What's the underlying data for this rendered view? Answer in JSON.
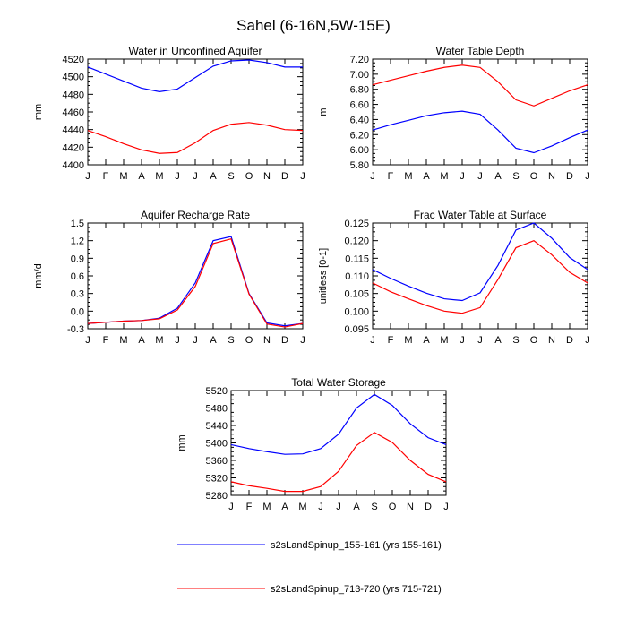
{
  "figure_title": "Sahel (6-16N,5W-15E)",
  "legend": [
    {
      "label": "s2sLandSpinup_155-161 (yrs 155-161)",
      "color": "#0000ff"
    },
    {
      "label": "s2sLandSpinup_713-720 (yrs 715-721)",
      "color": "#ff0000"
    }
  ],
  "chart_data": [
    {
      "type": "line",
      "title": "Water in Unconfined Aquifer",
      "ylabel": "mm",
      "categories": [
        "J",
        "F",
        "M",
        "A",
        "M",
        "J",
        "J",
        "A",
        "S",
        "O",
        "N",
        "D",
        "J"
      ],
      "ylim": [
        4400,
        4520
      ],
      "yticks": [
        4400,
        4420,
        4440,
        4460,
        4480,
        4500,
        4520
      ],
      "ytick_labels": [
        "4400",
        "4420",
        "4440",
        "4460",
        "4480",
        "4500",
        "4520"
      ],
      "series": [
        {
          "name": "s2sLandSpinup_155-161 (yrs 155-161)",
          "color": "#0000ff",
          "values": [
            4511,
            4503,
            4495,
            4487,
            4483,
            4486,
            4499,
            4512,
            4518,
            4519,
            4516,
            4511,
            4511
          ]
        },
        {
          "name": "s2sLandSpinup_713-720 (yrs 715-721)",
          "color": "#ff0000",
          "values": [
            4439,
            4432,
            4424,
            4417,
            4413,
            4414,
            4425,
            4439,
            4446,
            4448,
            4445,
            4440,
            4439
          ]
        }
      ]
    },
    {
      "type": "line",
      "title": "Water Table Depth",
      "ylabel": "m",
      "categories": [
        "J",
        "F",
        "M",
        "A",
        "M",
        "J",
        "J",
        "A",
        "S",
        "O",
        "N",
        "D",
        "J"
      ],
      "ylim": [
        5.8,
        7.2
      ],
      "yticks": [
        5.8,
        6.0,
        6.2,
        6.4,
        6.6,
        6.8,
        7.0,
        7.2
      ],
      "ytick_labels": [
        "5.80",
        "6.00",
        "6.20",
        "6.40",
        "6.60",
        "6.80",
        "7.00",
        "7.20"
      ],
      "series": [
        {
          "name": "s2sLandSpinup_155-161 (yrs 155-161)",
          "color": "#0000ff",
          "values": [
            6.26,
            6.33,
            6.39,
            6.45,
            6.49,
            6.51,
            6.47,
            6.26,
            6.02,
            5.96,
            6.05,
            6.16,
            6.26
          ]
        },
        {
          "name": "s2sLandSpinup_713-720 (yrs 715-721)",
          "color": "#ff0000",
          "values": [
            6.86,
            6.92,
            6.98,
            7.04,
            7.09,
            7.12,
            7.09,
            6.9,
            6.66,
            6.58,
            6.68,
            6.78,
            6.86
          ]
        }
      ]
    },
    {
      "type": "line",
      "title": "Aquifer Recharge Rate",
      "ylabel": "mm/d",
      "categories": [
        "J",
        "F",
        "M",
        "A",
        "M",
        "J",
        "J",
        "A",
        "S",
        "O",
        "N",
        "D",
        "J"
      ],
      "ylim": [
        -0.3,
        1.5
      ],
      "yticks": [
        -0.3,
        0.0,
        0.3,
        0.6,
        0.9,
        1.2,
        1.5
      ],
      "ytick_labels": [
        "-0.3",
        "0.0",
        "0.3",
        "0.6",
        "0.9",
        "1.2",
        "1.5"
      ],
      "series": [
        {
          "name": "s2sLandSpinup_155-161 (yrs 155-161)",
          "color": "#0000ff",
          "values": [
            -0.21,
            -0.19,
            -0.17,
            -0.16,
            -0.12,
            0.05,
            0.48,
            1.2,
            1.27,
            0.3,
            -0.2,
            -0.25,
            -0.21
          ]
        },
        {
          "name": "s2sLandSpinup_713-720 (yrs 715-721)",
          "color": "#ff0000",
          "values": [
            -0.21,
            -0.19,
            -0.17,
            -0.16,
            -0.13,
            0.02,
            0.42,
            1.15,
            1.23,
            0.29,
            -0.22,
            -0.27,
            -0.21
          ]
        }
      ]
    },
    {
      "type": "line",
      "title": "Frac Water Table at Surface",
      "ylabel": "unitless [0-1]",
      "categories": [
        "J",
        "F",
        "M",
        "A",
        "M",
        "J",
        "J",
        "A",
        "S",
        "O",
        "N",
        "D",
        "J"
      ],
      "ylim": [
        0.095,
        0.125
      ],
      "yticks": [
        0.095,
        0.1,
        0.105,
        0.11,
        0.115,
        0.12,
        0.125
      ],
      "ytick_labels": [
        "0.095",
        "0.100",
        "0.105",
        "0.110",
        "0.115",
        "0.120",
        "0.125"
      ],
      "series": [
        {
          "name": "s2sLandSpinup_155-161 (yrs 155-161)",
          "color": "#0000ff",
          "values": [
            0.1118,
            0.1093,
            0.1071,
            0.1051,
            0.1035,
            0.103,
            0.1052,
            0.113,
            0.123,
            0.125,
            0.1207,
            0.1152,
            0.1118
          ]
        },
        {
          "name": "s2sLandSpinup_713-720 (yrs 715-721)",
          "color": "#ff0000",
          "values": [
            0.108,
            0.1055,
            0.1035,
            0.1016,
            0.1,
            0.0994,
            0.101,
            0.109,
            0.118,
            0.12,
            0.116,
            0.111,
            0.108
          ]
        }
      ]
    },
    {
      "type": "line",
      "title": "Total Water Storage",
      "ylabel": "mm",
      "categories": [
        "J",
        "F",
        "M",
        "A",
        "M",
        "J",
        "J",
        "A",
        "S",
        "O",
        "N",
        "D",
        "J"
      ],
      "ylim": [
        5280,
        5520
      ],
      "yticks": [
        5280,
        5320,
        5360,
        5400,
        5440,
        5480,
        5520
      ],
      "ytick_labels": [
        "5280",
        "5320",
        "5360",
        "5400",
        "5440",
        "5480",
        "5520"
      ],
      "series": [
        {
          "name": "s2sLandSpinup_155-161 (yrs 155-161)",
          "color": "#0000ff",
          "values": [
            5396,
            5387,
            5380,
            5374,
            5375,
            5387,
            5420,
            5480,
            5511,
            5486,
            5444,
            5412,
            5396
          ]
        },
        {
          "name": "s2sLandSpinup_713-720 (yrs 715-721)",
          "color": "#ff0000",
          "values": [
            5311,
            5302,
            5296,
            5289,
            5289,
            5300,
            5335,
            5394,
            5424,
            5401,
            5360,
            5328,
            5311
          ]
        }
      ]
    }
  ]
}
